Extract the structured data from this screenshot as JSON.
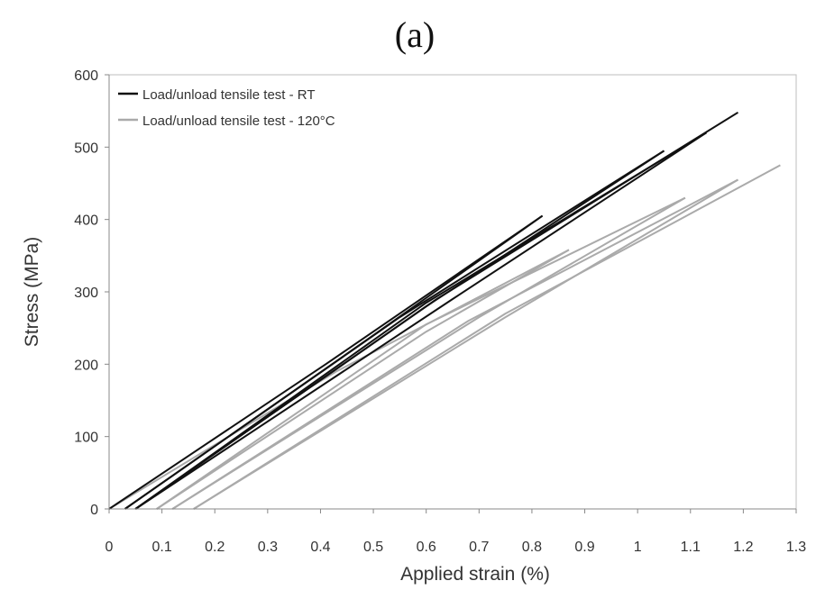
{
  "chart_data": {
    "type": "line",
    "panel_label": "(a)",
    "title": "",
    "xlabel": "Applied strain (%)",
    "ylabel": "Stress (MPa)",
    "xlim": [
      0,
      1.3
    ],
    "ylim": [
      0,
      600
    ],
    "xticks": [
      0,
      0.1,
      0.2,
      0.3,
      0.4,
      0.5,
      0.6,
      0.7,
      0.8,
      0.9,
      1,
      1.1,
      1.2,
      1.3
    ],
    "xtick_labels": [
      "0",
      "0.1",
      "0.2",
      "0.3",
      "0.4",
      "0.5",
      "0.6",
      "0.7",
      "0.8",
      "0.9",
      "1",
      "1.1",
      "1.2",
      "1.3"
    ],
    "yticks": [
      0,
      100,
      200,
      300,
      400,
      500,
      600
    ],
    "ytick_labels": [
      "0",
      "100",
      "200",
      "300",
      "400",
      "500",
      "600"
    ],
    "grid": false,
    "legend_position": "top-left",
    "series": [
      {
        "name": "Load/unload tensile test  - RT",
        "color": "#111111",
        "segments": [
          [
            [
              0,
              0
            ],
            [
              0.41,
              200
            ],
            [
              0.82,
              405
            ]
          ],
          [
            [
              0.82,
              405
            ],
            [
              0.5,
              240
            ],
            [
              0.03,
              0
            ]
          ],
          [
            [
              0.03,
              0
            ],
            [
              0.55,
              265
            ],
            [
              1.05,
              495
            ]
          ],
          [
            [
              1.05,
              495
            ],
            [
              0.6,
              280
            ],
            [
              0.05,
              0
            ]
          ],
          [
            [
              0.05,
              0
            ],
            [
              0.6,
              285
            ],
            [
              1.13,
              520
            ]
          ],
          [
            [
              1.13,
              520
            ],
            [
              0.65,
              290
            ],
            [
              0.05,
              0
            ]
          ],
          [
            [
              0.05,
              0
            ],
            [
              0.62,
              290
            ],
            [
              1.19,
              548
            ]
          ]
        ]
      },
      {
        "name": "Load/unload tensile test - 120°C",
        "color": "#aaaaaa",
        "segments": [
          [
            [
              0,
              0
            ],
            [
              0.43,
              190
            ],
            [
              0.87,
              358
            ]
          ],
          [
            [
              0.87,
              358
            ],
            [
              0.6,
              245
            ],
            [
              0.09,
              0
            ]
          ],
          [
            [
              0.09,
              0
            ],
            [
              0.6,
              255
            ],
            [
              1.09,
              430
            ]
          ],
          [
            [
              1.09,
              430
            ],
            [
              0.7,
              265
            ],
            [
              0.12,
              0
            ]
          ],
          [
            [
              0.12,
              0
            ],
            [
              0.68,
              260
            ],
            [
              1.19,
              455
            ]
          ],
          [
            [
              1.19,
              455
            ],
            [
              0.75,
              265
            ],
            [
              0.16,
              0
            ]
          ],
          [
            [
              0.16,
              0
            ],
            [
              0.75,
              270
            ],
            [
              1.27,
              475
            ]
          ]
        ]
      }
    ]
  }
}
